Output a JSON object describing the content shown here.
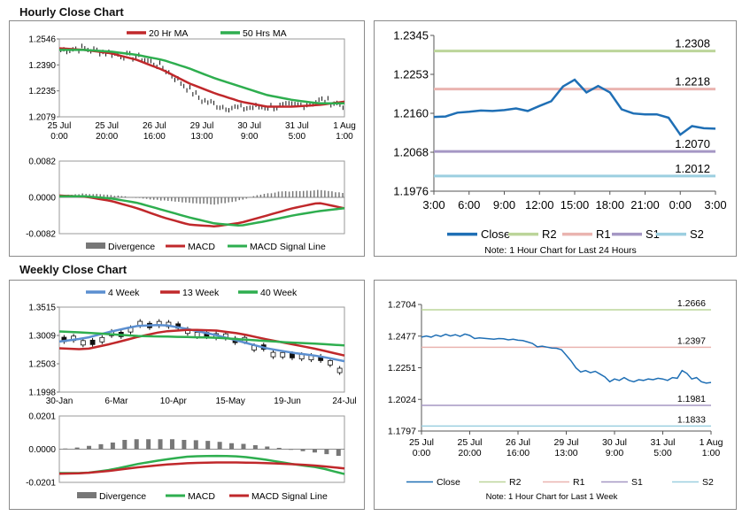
{
  "hourly": {
    "title": "Hourly Close Chart",
    "price_legend": [
      "20 Hr MA",
      "50 Hrs MA"
    ],
    "macd_legend": [
      "Divergence",
      "MACD",
      "MACD Signal Line"
    ],
    "price_axis": [
      "1.2546",
      "1.2390",
      "1.2235",
      "1.2079"
    ],
    "macd_axis": [
      "0.0082",
      "0.0000",
      "-0.0082"
    ],
    "x_labels": [
      [
        "25 Jul",
        "0:00"
      ],
      [
        "25 Jul",
        "20:00"
      ],
      [
        "26 Jul",
        "16:00"
      ],
      [
        "29 Jul",
        "13:00"
      ],
      [
        "30 Jul",
        "9:00"
      ],
      [
        "31 Jul",
        "5:00"
      ],
      [
        "1 Aug",
        "1:00"
      ]
    ]
  },
  "weekly": {
    "title": "Weekly Close Chart",
    "price_legend": [
      "4 Week",
      "13 Week",
      "40 Week"
    ],
    "macd_legend": [
      "Divergence",
      "MACD",
      "MACD Signal Line"
    ],
    "price_axis": [
      "1.3515",
      "1.3009",
      "1.2503",
      "1.1998"
    ],
    "macd_axis": [
      "0.0201",
      "0.0000",
      "-0.0201"
    ],
    "x_labels": [
      "30-Jan",
      "6-Mar",
      "10-Apr",
      "15-May",
      "19-Jun",
      "24-Jul"
    ]
  },
  "colors": {
    "ma20": "#c0282b",
    "ma50": "#2eae4f",
    "week4": "#5b8fd0",
    "week13": "#c0282b",
    "week40": "#2eae4f",
    "macd": "#c0282b",
    "signal": "#2eae4f",
    "divergence": "#777777",
    "close": "#1f6fb5",
    "r2": "#bcd59a",
    "r1": "#eab4b0",
    "s1": "#a597c4",
    "s2": "#9ccfe0"
  },
  "chart_data": [
    {
      "type": "line",
      "title": "Hourly Close Chart - 1 Hour Chart for Last 24 Hours",
      "categories": [
        "3:00",
        "4:00",
        "5:00",
        "6:00",
        "7:00",
        "8:00",
        "9:00",
        "10:00",
        "11:00",
        "12:00",
        "13:00",
        "14:00",
        "15:00",
        "16:00",
        "17:00",
        "18:00",
        "19:00",
        "20:00",
        "21:00",
        "22:00",
        "23:00",
        "0:00",
        "1:00",
        "2:00",
        "3:00"
      ],
      "x_ticks": [
        "3:00",
        "6:00",
        "9:00",
        "12:00",
        "15:00",
        "18:00",
        "21:00",
        "0:00",
        "3:00"
      ],
      "y_ticks": [
        "1.2345",
        "1.2253",
        "1.2160",
        "1.2068",
        "1.1976"
      ],
      "ylim": [
        1.1976,
        1.2345
      ],
      "series": [
        {
          "name": "Close",
          "values": [
            1.2152,
            1.2153,
            1.2162,
            1.2164,
            1.2167,
            1.2166,
            1.2168,
            1.2172,
            1.2166,
            1.2178,
            1.2189,
            1.2224,
            1.224,
            1.221,
            1.2225,
            1.221,
            1.217,
            1.216,
            1.2158,
            1.2158,
            1.215,
            1.211,
            1.213,
            1.2125,
            1.2124
          ]
        },
        {
          "name": "R2",
          "level": 1.2308,
          "label": "1.2308"
        },
        {
          "name": "R1",
          "level": 1.2218,
          "label": "1.2218"
        },
        {
          "name": "S1",
          "level": 1.207,
          "label": "1.2070"
        },
        {
          "name": "S2",
          "level": 1.2012,
          "label": "1.2012"
        }
      ],
      "legend": [
        "Close",
        "R2",
        "R1",
        "S1",
        "S2"
      ],
      "note": "Note: 1 Hour Chart for Last 24 Hours"
    },
    {
      "type": "line",
      "title": "Weekly Close Chart - 1 Hour Chart for Last 1 Week",
      "x_ticks": [
        [
          "25 Jul",
          "0:00"
        ],
        [
          "25 Jul",
          "20:00"
        ],
        [
          "26 Jul",
          "16:00"
        ],
        [
          "29 Jul",
          "13:00"
        ],
        [
          "30 Jul",
          "9:00"
        ],
        [
          "31 Jul",
          "5:00"
        ],
        [
          "1 Aug",
          "1:00"
        ]
      ],
      "y_ticks": [
        "1.2704",
        "1.2477",
        "1.2251",
        "1.2024",
        "1.1797"
      ],
      "ylim": [
        1.1797,
        1.2704
      ],
      "series": [
        {
          "name": "Close",
          "values": [
            1.247,
            1.2478,
            1.247,
            1.2485,
            1.2475,
            1.249,
            1.2478,
            1.2488,
            1.2475,
            1.2492,
            1.2482,
            1.246,
            1.2465,
            1.2462,
            1.2458,
            1.2455,
            1.246,
            1.2458,
            1.245,
            1.2455,
            1.2448,
            1.2445,
            1.2435,
            1.2425,
            1.24,
            1.2405,
            1.2398,
            1.2392,
            1.239,
            1.238,
            1.234,
            1.23,
            1.225,
            1.222,
            1.223,
            1.2215,
            1.2225,
            1.2205,
            1.2185,
            1.215,
            1.217,
            1.216,
            1.218,
            1.216,
            1.215,
            1.2165,
            1.216,
            1.217,
            1.2165,
            1.2175,
            1.217,
            1.216,
            1.218,
            1.2175,
            1.223,
            1.221,
            1.217,
            1.218,
            1.215,
            1.214,
            1.2145
          ]
        },
        {
          "name": "R2",
          "level": 1.2666,
          "label": "1.2666"
        },
        {
          "name": "R1",
          "level": 1.2397,
          "label": "1.2397"
        },
        {
          "name": "S1",
          "level": 1.1981,
          "label": "1.1981"
        },
        {
          "name": "S2",
          "level": 1.1833,
          "label": "1.1833"
        }
      ],
      "legend": [
        "Close",
        "R2",
        "R1",
        "S1",
        "S2"
      ],
      "note": "Note: 1 Hour Chart for Last 1 Week"
    }
  ]
}
